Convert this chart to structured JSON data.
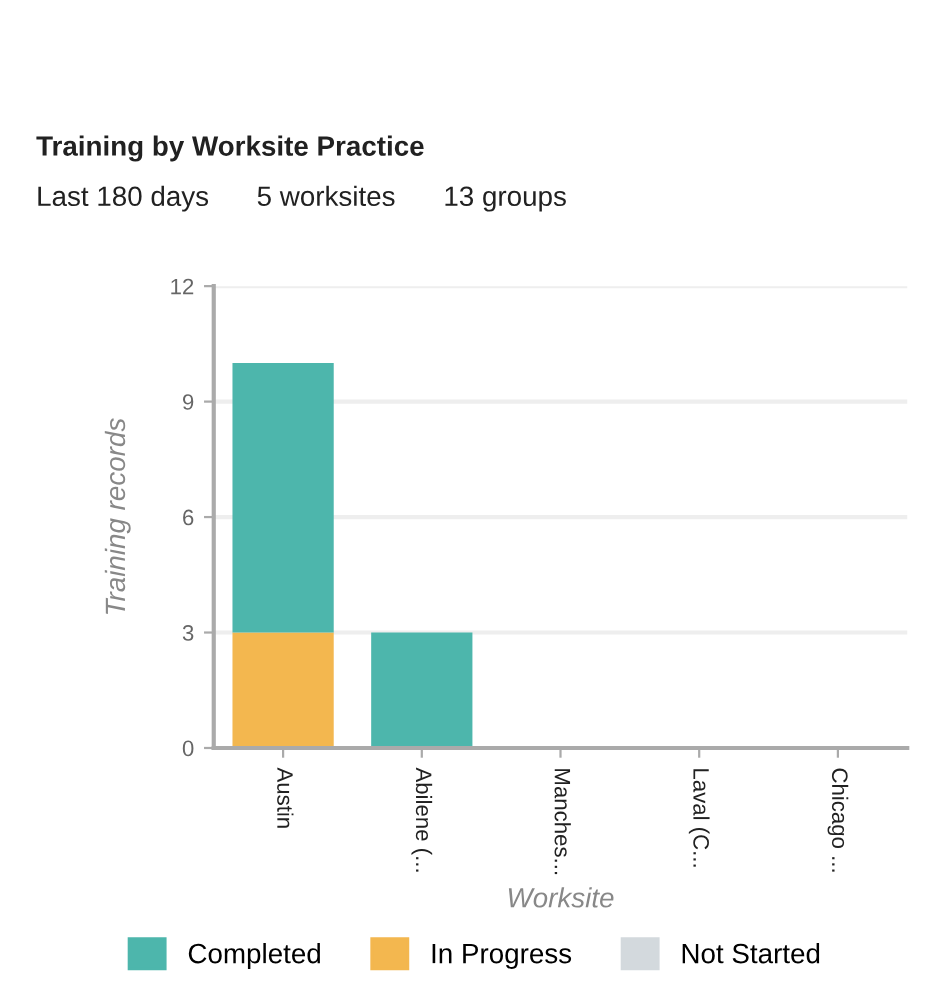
{
  "chart_data": {
    "type": "bar",
    "title": "Training by Worksite Practice",
    "annotations": [
      "Last 180 days",
      "5 worksites",
      "13 groups"
    ],
    "xlabel": "Worksite",
    "ylabel": "Training records",
    "categories": [
      "Austin",
      "Abilene (...",
      "Manches...",
      "Laval (C...",
      "Chicago ..."
    ],
    "series": [
      {
        "name": "Completed",
        "color": "#4db6ac",
        "values": [
          7,
          3,
          0,
          0,
          0
        ]
      },
      {
        "name": "In Progress",
        "color": "#f3b74f",
        "values": [
          3,
          0,
          0,
          0,
          0
        ]
      },
      {
        "name": "Not Started",
        "color": "#d3d9dd",
        "values": [
          0,
          0,
          0,
          0,
          0
        ]
      }
    ],
    "stacked": true,
    "ylim": [
      0,
      12
    ],
    "yticks": [
      0,
      3,
      6,
      9,
      12
    ],
    "grid": "y",
    "legend": "bottom"
  }
}
